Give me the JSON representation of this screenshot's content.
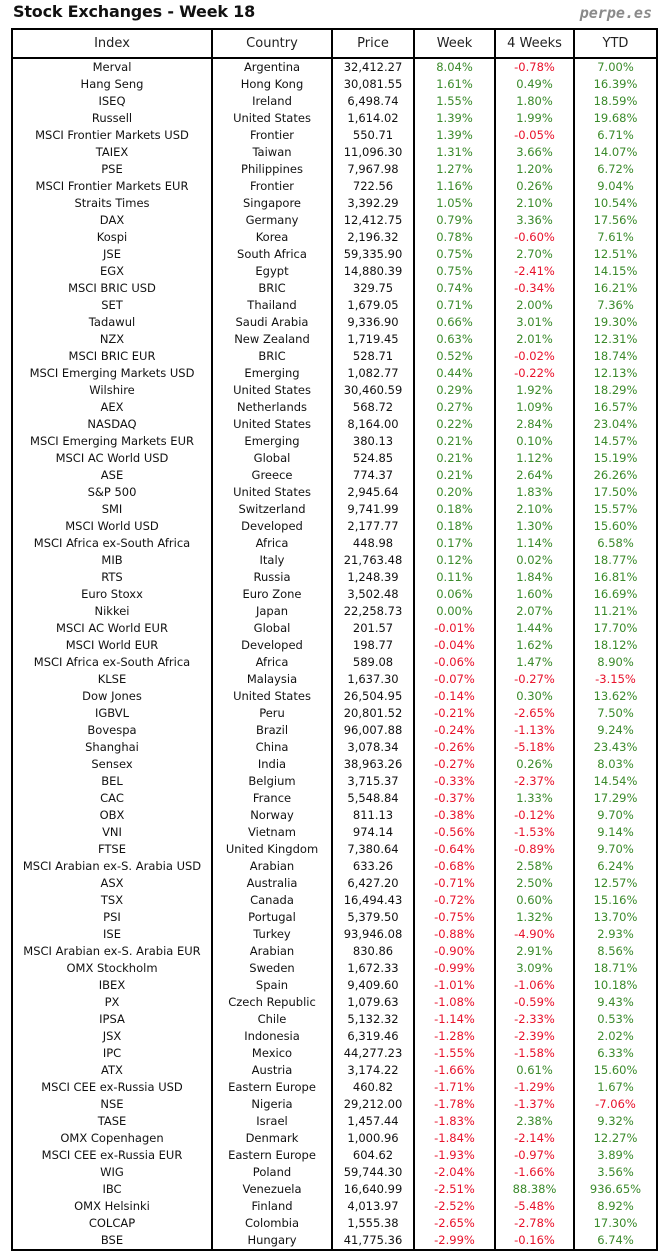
{
  "header": {
    "title": "Stock Exchanges - Week 18",
    "brand": "perpe.es"
  },
  "colors": {
    "positive": "#3a8a2a",
    "negative": "#e8102a"
  },
  "table": {
    "columns": [
      "Index",
      "Country",
      "Price",
      "Week",
      "4 Weeks",
      "YTD"
    ],
    "rows": [
      [
        "Merval",
        "Argentina",
        "32,412.27",
        "8.04%",
        "-0.78%",
        "7.00%"
      ],
      [
        "Hang Seng",
        "Hong Kong",
        "30,081.55",
        "1.61%",
        "0.49%",
        "16.39%"
      ],
      [
        "ISEQ",
        "Ireland",
        "6,498.74",
        "1.55%",
        "1.80%",
        "18.59%"
      ],
      [
        "Russell",
        "United States",
        "1,614.02",
        "1.39%",
        "1.99%",
        "19.68%"
      ],
      [
        "MSCI Frontier Markets USD",
        "Frontier",
        "550.71",
        "1.39%",
        "-0.05%",
        "6.71%"
      ],
      [
        "TAIEX",
        "Taiwan",
        "11,096.30",
        "1.31%",
        "3.66%",
        "14.07%"
      ],
      [
        "PSE",
        "Philippines",
        "7,967.98",
        "1.27%",
        "1.20%",
        "6.72%"
      ],
      [
        "MSCI Frontier Markets EUR",
        "Frontier",
        "722.56",
        "1.16%",
        "0.26%",
        "9.04%"
      ],
      [
        "Straits Times",
        "Singapore",
        "3,392.29",
        "1.05%",
        "2.10%",
        "10.54%"
      ],
      [
        "DAX",
        "Germany",
        "12,412.75",
        "0.79%",
        "3.36%",
        "17.56%"
      ],
      [
        "Kospi",
        "Korea",
        "2,196.32",
        "0.78%",
        "-0.60%",
        "7.61%"
      ],
      [
        "JSE",
        "South Africa",
        "59,335.90",
        "0.75%",
        "2.70%",
        "12.51%"
      ],
      [
        "EGX",
        "Egypt",
        "14,880.39",
        "0.75%",
        "-2.41%",
        "14.15%"
      ],
      [
        "MSCI BRIC USD",
        "BRIC",
        "329.75",
        "0.74%",
        "-0.34%",
        "16.21%"
      ],
      [
        "SET",
        "Thailand",
        "1,679.05",
        "0.71%",
        "2.00%",
        "7.36%"
      ],
      [
        "Tadawul",
        "Saudi Arabia",
        "9,336.90",
        "0.66%",
        "3.01%",
        "19.30%"
      ],
      [
        "NZX",
        "New Zealand",
        "1,719.45",
        "0.63%",
        "2.01%",
        "12.31%"
      ],
      [
        "MSCI BRIC EUR",
        "BRIC",
        "528.71",
        "0.52%",
        "-0.02%",
        "18.74%"
      ],
      [
        "MSCI Emerging Markets USD",
        "Emerging",
        "1,082.77",
        "0.44%",
        "-0.22%",
        "12.13%"
      ],
      [
        "Wilshire",
        "United States",
        "30,460.59",
        "0.29%",
        "1.92%",
        "18.29%"
      ],
      [
        "AEX",
        "Netherlands",
        "568.72",
        "0.27%",
        "1.09%",
        "16.57%"
      ],
      [
        "NASDAQ",
        "United States",
        "8,164.00",
        "0.22%",
        "2.84%",
        "23.04%"
      ],
      [
        "MSCI Emerging Markets EUR",
        "Emerging",
        "380.13",
        "0.21%",
        "0.10%",
        "14.57%"
      ],
      [
        "MSCI AC World USD",
        "Global",
        "524.85",
        "0.21%",
        "1.12%",
        "15.19%"
      ],
      [
        "ASE",
        "Greece",
        "774.37",
        "0.21%",
        "2.64%",
        "26.26%"
      ],
      [
        "S&P 500",
        "United States",
        "2,945.64",
        "0.20%",
        "1.83%",
        "17.50%"
      ],
      [
        "SMI",
        "Switzerland",
        "9,741.99",
        "0.18%",
        "2.10%",
        "15.57%"
      ],
      [
        "MSCI World USD",
        "Developed",
        "2,177.77",
        "0.18%",
        "1.30%",
        "15.60%"
      ],
      [
        "MSCI Africa ex-South Africa",
        "Africa",
        "448.98",
        "0.17%",
        "1.14%",
        "6.58%"
      ],
      [
        "MIB",
        "Italy",
        "21,763.48",
        "0.12%",
        "0.02%",
        "18.77%"
      ],
      [
        "RTS",
        "Russia",
        "1,248.39",
        "0.11%",
        "1.84%",
        "16.81%"
      ],
      [
        "Euro Stoxx",
        "Euro Zone",
        "3,502.48",
        "0.06%",
        "1.60%",
        "16.69%"
      ],
      [
        "Nikkei",
        "Japan",
        "22,258.73",
        "0.00%",
        "2.07%",
        "11.21%"
      ],
      [
        "MSCI AC World EUR",
        "Global",
        "201.57",
        "-0.01%",
        "1.44%",
        "17.70%"
      ],
      [
        "MSCI World EUR",
        "Developed",
        "198.77",
        "-0.04%",
        "1.62%",
        "18.12%"
      ],
      [
        "MSCI Africa ex-South Africa",
        "Africa",
        "589.08",
        "-0.06%",
        "1.47%",
        "8.90%"
      ],
      [
        "KLSE",
        "Malaysia",
        "1,637.30",
        "-0.07%",
        "-0.27%",
        "-3.15%"
      ],
      [
        "Dow Jones",
        "United States",
        "26,504.95",
        "-0.14%",
        "0.30%",
        "13.62%"
      ],
      [
        "IGBVL",
        "Peru",
        "20,801.52",
        "-0.21%",
        "-2.65%",
        "7.50%"
      ],
      [
        "Bovespa",
        "Brazil",
        "96,007.88",
        "-0.24%",
        "-1.13%",
        "9.24%"
      ],
      [
        "Shanghai",
        "China",
        "3,078.34",
        "-0.26%",
        "-5.18%",
        "23.43%"
      ],
      [
        "Sensex",
        "India",
        "38,963.26",
        "-0.27%",
        "0.26%",
        "8.03%"
      ],
      [
        "BEL",
        "Belgium",
        "3,715.37",
        "-0.33%",
        "-2.37%",
        "14.54%"
      ],
      [
        "CAC",
        "France",
        "5,548.84",
        "-0.37%",
        "1.33%",
        "17.29%"
      ],
      [
        "OBX",
        "Norway",
        "811.13",
        "-0.38%",
        "-0.12%",
        "9.70%"
      ],
      [
        "VNI",
        "Vietnam",
        "974.14",
        "-0.56%",
        "-1.53%",
        "9.14%"
      ],
      [
        "FTSE",
        "United Kingdom",
        "7,380.64",
        "-0.64%",
        "-0.89%",
        "9.70%"
      ],
      [
        "MSCI Arabian ex-S. Arabia USD",
        "Arabian",
        "633.26",
        "-0.68%",
        "2.58%",
        "6.24%"
      ],
      [
        "ASX",
        "Australia",
        "6,427.20",
        "-0.71%",
        "2.50%",
        "12.57%"
      ],
      [
        "TSX",
        "Canada",
        "16,494.43",
        "-0.72%",
        "0.60%",
        "15.16%"
      ],
      [
        "PSI",
        "Portugal",
        "5,379.50",
        "-0.75%",
        "1.32%",
        "13.70%"
      ],
      [
        "ISE",
        "Turkey",
        "93,946.08",
        "-0.88%",
        "-4.90%",
        "2.93%"
      ],
      [
        "MSCI Arabian ex-S. Arabia EUR",
        "Arabian",
        "830.86",
        "-0.90%",
        "2.91%",
        "8.56%"
      ],
      [
        "OMX Stockholm",
        "Sweden",
        "1,672.33",
        "-0.99%",
        "3.09%",
        "18.71%"
      ],
      [
        "IBEX",
        "Spain",
        "9,409.60",
        "-1.01%",
        "-1.06%",
        "10.18%"
      ],
      [
        "PX",
        "Czech Republic",
        "1,079.63",
        "-1.08%",
        "-0.59%",
        "9.43%"
      ],
      [
        "IPSA",
        "Chile",
        "5,132.32",
        "-1.14%",
        "-2.33%",
        "0.53%"
      ],
      [
        "JSX",
        "Indonesia",
        "6,319.46",
        "-1.28%",
        "-2.39%",
        "2.02%"
      ],
      [
        "IPC",
        "Mexico",
        "44,277.23",
        "-1.55%",
        "-1.58%",
        "6.33%"
      ],
      [
        "ATX",
        "Austria",
        "3,174.22",
        "-1.66%",
        "0.61%",
        "15.60%"
      ],
      [
        "MSCI CEE ex-Russia USD",
        "Eastern Europe",
        "460.82",
        "-1.71%",
        "-1.29%",
        "1.67%"
      ],
      [
        "NSE",
        "Nigeria",
        "29,212.00",
        "-1.78%",
        "-1.37%",
        "-7.06%"
      ],
      [
        "TASE",
        "Israel",
        "1,457.44",
        "-1.83%",
        "2.38%",
        "9.32%"
      ],
      [
        "OMX Copenhagen",
        "Denmark",
        "1,000.96",
        "-1.84%",
        "-2.14%",
        "12.27%"
      ],
      [
        "MSCI CEE ex-Russia EUR",
        "Eastern Europe",
        "604.62",
        "-1.93%",
        "-0.97%",
        "3.89%"
      ],
      [
        "WIG",
        "Poland",
        "59,744.30",
        "-2.04%",
        "-1.66%",
        "3.56%"
      ],
      [
        "IBC",
        "Venezuela",
        "16,640.99",
        "-2.51%",
        "88.38%",
        "936.65%"
      ],
      [
        "OMX Helsinki",
        "Finland",
        "4,013.97",
        "-2.52%",
        "-5.48%",
        "8.92%"
      ],
      [
        "COLCAP",
        "Colombia",
        "1,555.38",
        "-2.65%",
        "-2.78%",
        "17.30%"
      ],
      [
        "BSE",
        "Hungary",
        "41,775.36",
        "-2.99%",
        "-0.16%",
        "6.74%"
      ]
    ]
  }
}
